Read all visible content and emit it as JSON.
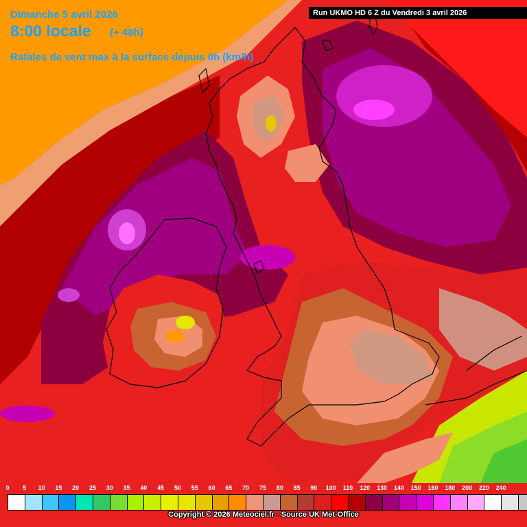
{
  "header": {
    "date": "Dimanche 5 avril 2026",
    "time": "8:00 locale",
    "lead": "(+ 48h)",
    "parameter": "Rafales de vent max à la surface depuis 0h (km/h)",
    "run": "Run UKMO HD 6 Z du Vendredi 3 avril 2026"
  },
  "legend": {
    "ticks": [
      "0",
      "5",
      "10",
      "15",
      "20",
      "25",
      "30",
      "35",
      "40",
      "45",
      "50",
      "55",
      "60",
      "65",
      "70",
      "75",
      "80",
      "85",
      "90",
      "100",
      "110",
      "120",
      "130",
      "140",
      "150",
      "160",
      "180",
      "200",
      "220",
      "240"
    ],
    "colors": [
      "#ffffff",
      "#a0e6ff",
      "#3cc8ff",
      "#0a96f0",
      "#00e6b4",
      "#32c864",
      "#78dc32",
      "#aaf000",
      "#c8f000",
      "#e6f000",
      "#e6e600",
      "#e6c800",
      "#e6a000",
      "#ff8c00",
      "#f09678",
      "#cc9a96",
      "#c86432",
      "#b43c32",
      "#dc1e1e",
      "#ff0000",
      "#b40000",
      "#8c0046",
      "#a00078",
      "#c800b4",
      "#dc00dc",
      "#ff32ff",
      "#ff82ff",
      "#ffaaff",
      "#ffffff",
      "#e6e6e6",
      "#c8c8c8"
    ]
  },
  "footer": {
    "copyright": "Copyright © 2026 Meteociel.fr - Source UK Met-Office"
  },
  "map": {
    "colors": {
      "orange": "#ff9900",
      "salmon": "#f09070",
      "pink": "#d09080",
      "brown": "#c86432",
      "red": "#e82020",
      "bright_red": "#ff1a1a",
      "dark_red": "#b00000",
      "maroon": "#8c0040",
      "purple": "#a00080",
      "violet": "#c800b4",
      "magenta": "#e040e0",
      "pink_magenta": "#ff60ff",
      "yellow_green": "#c8e600",
      "lime": "#8cdc28",
      "green": "#50c832",
      "land_outline": "#000000"
    }
  }
}
